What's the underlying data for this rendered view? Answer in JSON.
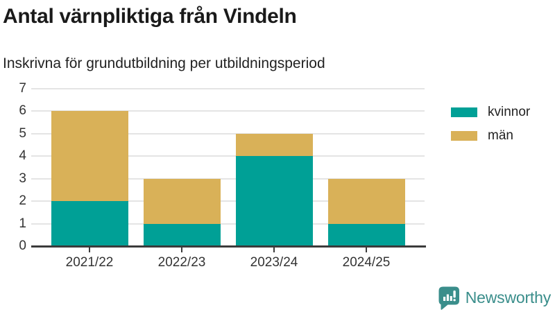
{
  "header": {
    "title": "Antal värnpliktiga från Vindeln",
    "subtitle": "Inskrivna för grundutbildning per utbildningsperiod"
  },
  "chart_data": {
    "type": "bar",
    "stacked": true,
    "title": "Antal värnpliktiga från Vindeln",
    "subtitle": "Inskrivna för grundutbildning per utbildningsperiod",
    "categories": [
      "2021/22",
      "2022/23",
      "2023/24",
      "2024/25"
    ],
    "series": [
      {
        "name": "kvinnor",
        "color": "#00A096",
        "values": [
          2,
          1,
          4,
          1
        ]
      },
      {
        "name": "män",
        "color": "#D9B158",
        "values": [
          4,
          2,
          1,
          2
        ]
      }
    ],
    "totals": [
      6,
      3,
      5,
      3
    ],
    "xlabel": "",
    "ylabel": "",
    "ylim": [
      0,
      7
    ],
    "yticks": [
      0,
      1,
      2,
      3,
      4,
      5,
      6,
      7
    ],
    "grid": true,
    "legend_position": "right"
  },
  "legend": {
    "items": [
      {
        "label": "kvinnor",
        "color": "#00A096"
      },
      {
        "label": "män",
        "color": "#D9B158"
      }
    ]
  },
  "branding": {
    "logo_text": "Newsworthy",
    "logo_color": "#3A8E8B",
    "icon": "newsworthy-speech-bubble-chart-icon"
  },
  "colors": {
    "gridline": "#e4e4e4",
    "axis": "#3b3b3b",
    "title_text": "#1a1a1a",
    "tick_text": "#333333"
  }
}
